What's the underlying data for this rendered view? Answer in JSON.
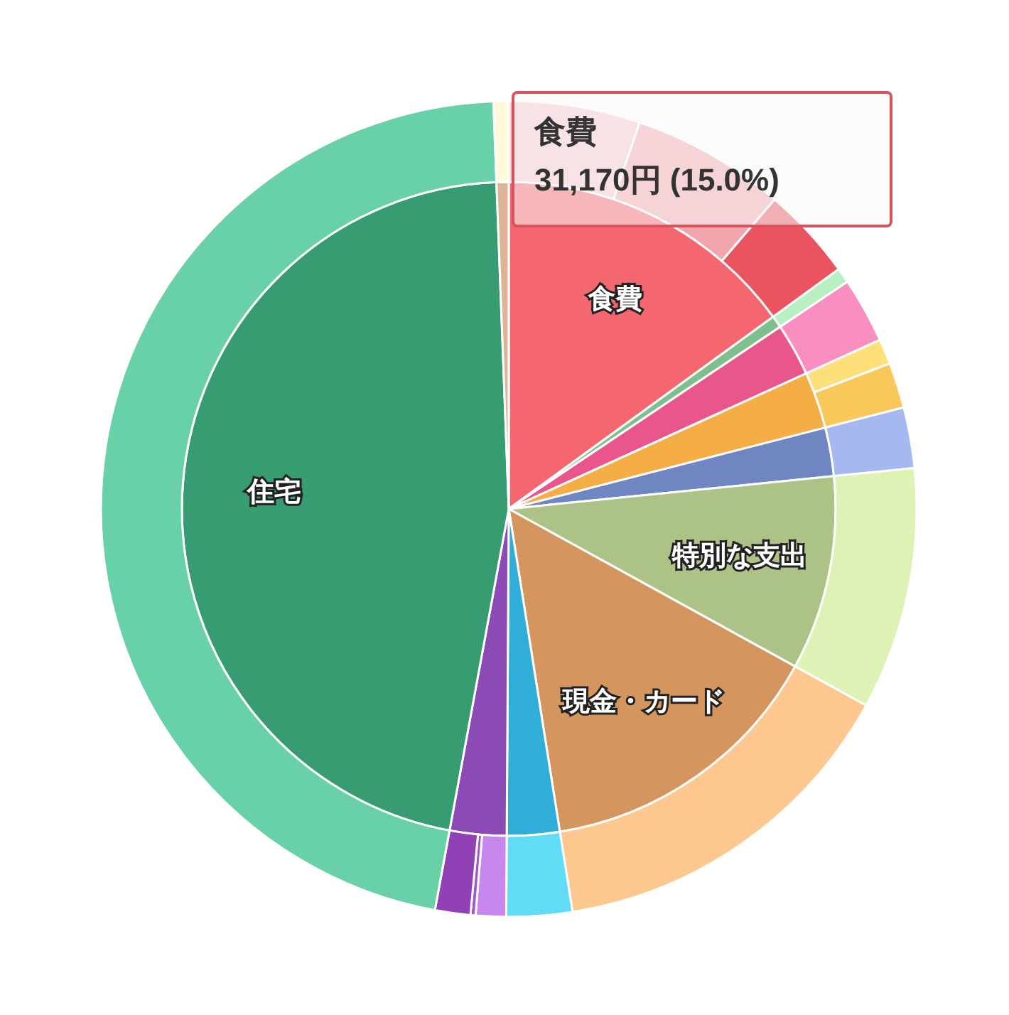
{
  "chart_data": [
    {
      "type": "pie",
      "categories": [
        "食費",
        null,
        null,
        null,
        null,
        "特別な支出",
        "現金・カード",
        null,
        null,
        "住宅",
        null
      ],
      "values": [
        15.0,
        0.6,
        2.6,
        2.8,
        2.4,
        9.6,
        14.5,
        2.6,
        2.8,
        46.5,
        0.6
      ],
      "colors": [
        "#f5676f",
        "#7fbf8e",
        "#e8568c",
        "#f5ad45",
        "#6f86c2",
        "#adc286",
        "#d4965e",
        "#30aed8",
        "#8c4ab5",
        "#379c72",
        "#dcb394"
      ],
      "annotations": [
        "食費",
        "31,170円 (15.0%)"
      ]
    },
    {
      "type": "donut",
      "categories": [
        null,
        null,
        null,
        null,
        null,
        null,
        null,
        null,
        null,
        null,
        null,
        null,
        null,
        null,
        null,
        null
      ],
      "values": [
        5.2,
        6.1,
        3.7,
        0.6,
        2.6,
        1.0,
        1.8,
        2.4,
        9.6,
        14.5,
        2.6,
        1.2,
        0.2,
        1.4,
        46.5,
        0.6
      ],
      "colors": [
        "#f6c9ce",
        "#f1a6ad",
        "#e9545f",
        "#b8f0c2",
        "#f98fc0",
        "#fde07a",
        "#fac85a",
        "#a5b8f0",
        "#def2b5",
        "#fdc890",
        "#60dcf7",
        "#c787ef",
        "#a155c8",
        "#9041b5",
        "#69d1a8",
        "#fffbd8"
      ]
    }
  ]
}
